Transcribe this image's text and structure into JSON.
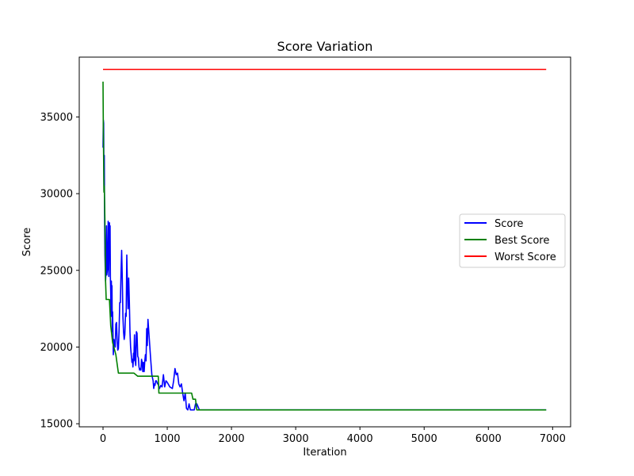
{
  "chart_data": {
    "type": "line",
    "title": "Score Variation",
    "xlabel": "Iteration",
    "ylabel": "Score",
    "xlim": [
      -370,
      7280
    ],
    "ylim": [
      14800,
      38900
    ],
    "xticks": [
      0,
      1000,
      2000,
      3000,
      4000,
      5000,
      6000,
      7000
    ],
    "yticks": [
      15000,
      20000,
      25000,
      30000,
      35000
    ],
    "grid": false,
    "legend": "center-right",
    "series": [
      {
        "name": "Score",
        "color": "#0000ff",
        "x": [
          0,
          5,
          10,
          15,
          20,
          25,
          30,
          40,
          50,
          55,
          60,
          70,
          80,
          90,
          100,
          105,
          110,
          115,
          120,
          125,
          130,
          135,
          140,
          145,
          150,
          160,
          170,
          180,
          190,
          200,
          210,
          220,
          230,
          240,
          250,
          260,
          270,
          280,
          290,
          300,
          310,
          320,
          330,
          340,
          350,
          360,
          370,
          380,
          390,
          400,
          410,
          420,
          430,
          440,
          450,
          460,
          465,
          470,
          475,
          480,
          490,
          500,
          510,
          520,
          530,
          540,
          550,
          560,
          570,
          580,
          590,
          600,
          610,
          620,
          630,
          640,
          650,
          660,
          670,
          680,
          690,
          700,
          720,
          740,
          760,
          780,
          790,
          800,
          810,
          820,
          830,
          840,
          850,
          860,
          870,
          880,
          890,
          900,
          920,
          940,
          960,
          980,
          1000,
          1040,
          1080,
          1100,
          1120,
          1140,
          1160,
          1180,
          1200,
          1220,
          1240,
          1260,
          1280,
          1300,
          1320,
          1340,
          1360,
          1380,
          1400,
          1420,
          1440,
          1460,
          1500,
          1550,
          1600,
          1640,
          1650,
          1660,
          1700,
          1750,
          1800,
          1810,
          1850,
          1860,
          1870,
          1880,
          1900,
          2000,
          6900
        ],
        "y": [
          33000,
          34800,
          34600,
          30200,
          32500,
          28300,
          26000,
          24300,
          25200,
          27900,
          24700,
          25100,
          28200,
          24600,
          28100,
          27500,
          27900,
          24500,
          23600,
          22000,
          24300,
          22900,
          24000,
          21000,
          22300,
          19500,
          20500,
          20200,
          20000,
          21500,
          21600,
          20500,
          19800,
          19900,
          21000,
          22900,
          22900,
          24800,
          26300,
          24500,
          22000,
          21000,
          20500,
          20800,
          22200,
          22000,
          26000,
          24000,
          22500,
          24500,
          23000,
          21000,
          20000,
          19500,
          19000,
          19200,
          18700,
          19000,
          19600,
          19100,
          20800,
          19200,
          18800,
          21000,
          20900,
          19400,
          19300,
          18700,
          18500,
          18600,
          18500,
          19200,
          19000,
          18400,
          19000,
          18400,
          19100,
          19500,
          19100,
          21200,
          20100,
          21800,
          20600,
          19300,
          18200,
          17800,
          17300,
          17600,
          17500,
          17800,
          17800,
          17700,
          17600,
          17600,
          17400,
          17300,
          17400,
          17500,
          17400,
          18200,
          17400,
          17800,
          17700,
          17400,
          17300,
          17800,
          18600,
          18200,
          18300,
          17600,
          17400,
          17600,
          17000,
          16500,
          17000,
          16000,
          15900,
          16300,
          15900,
          15900,
          15900,
          15900,
          16300,
          16300,
          15900,
          15900,
          15900,
          15900,
          15900,
          15900,
          15900,
          15900,
          15900,
          15900,
          15900,
          15900,
          15900,
          15900,
          15900,
          15900,
          15900
        ]
      },
      {
        "name": "Best Score",
        "color": "#008000",
        "x": [
          0,
          5,
          15,
          20,
          30,
          40,
          50,
          60,
          70,
          80,
          90,
          100,
          120,
          150,
          200,
          240,
          280,
          320,
          360,
          420,
          480,
          540,
          600,
          700,
          800,
          860,
          870,
          880,
          900,
          1000,
          1100,
          1200,
          1250,
          1380,
          1400,
          1440,
          1460,
          1500,
          2000,
          6900
        ],
        "y": [
          37300,
          34100,
          30100,
          30500,
          28200,
          24300,
          23100,
          23100,
          23100,
          23100,
          23100,
          23100,
          21400,
          20300,
          19500,
          18300,
          18300,
          18300,
          18300,
          18300,
          18300,
          18100,
          18100,
          18100,
          18100,
          18100,
          17000,
          17000,
          17000,
          17000,
          17000,
          17000,
          17000,
          17000,
          16600,
          16600,
          15900,
          15900,
          15900,
          15900
        ]
      },
      {
        "name": "Worst Score",
        "color": "#ff0000",
        "x": [
          0,
          6900
        ],
        "y": [
          38100,
          38100
        ]
      }
    ]
  }
}
